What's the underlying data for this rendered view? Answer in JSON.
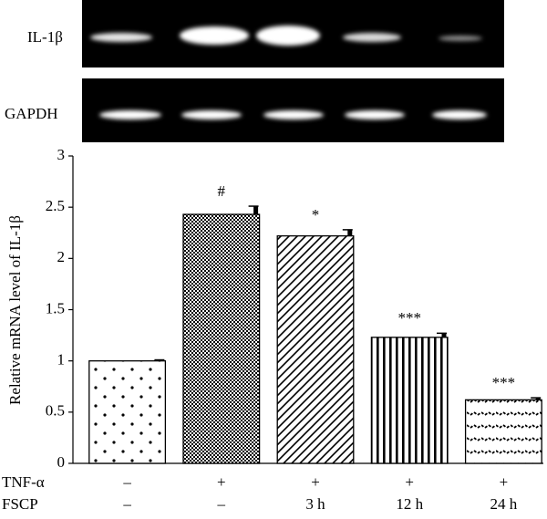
{
  "gel": {
    "rows": [
      "IL-1β",
      "GAPDH"
    ]
  },
  "chart_data": {
    "type": "bar",
    "ylabel": "Relative mRNA level of IL-1β",
    "ylim": [
      0,
      3
    ],
    "yticks": [
      0,
      0.5,
      1,
      1.5,
      2,
      2.5,
      3
    ],
    "treatments": [
      {
        "label": "TNF-α",
        "values": [
          "–",
          "+",
          "+",
          "+",
          "+"
        ]
      },
      {
        "label": "FSCP",
        "values": [
          "–",
          "–",
          "3 h",
          "12 h",
          "24 h"
        ]
      }
    ],
    "values": [
      1.0,
      2.43,
      2.22,
      1.23,
      0.62
    ],
    "errors": [
      0.01,
      0.08,
      0.06,
      0.04,
      0.02
    ],
    "annotations": [
      null,
      "#",
      "*",
      "***",
      "***"
    ],
    "patterns": [
      "dots",
      "checker",
      "diagonal",
      "vertical",
      "zigzag"
    ],
    "color": "#000000"
  }
}
